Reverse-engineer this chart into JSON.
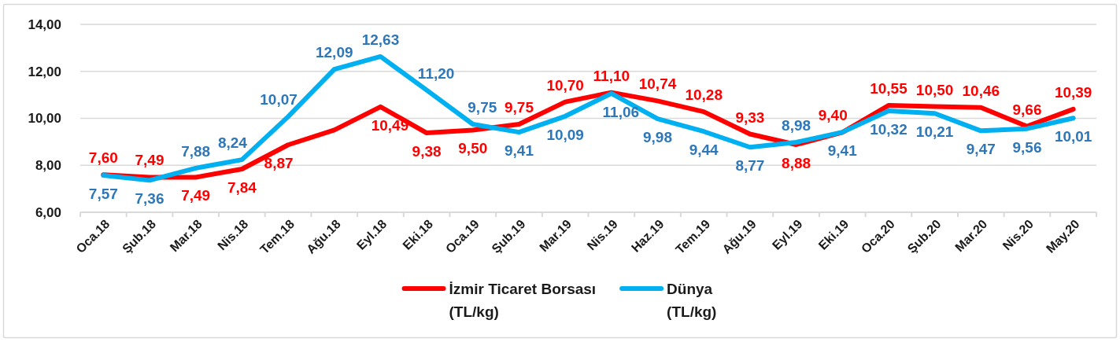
{
  "chart_data": {
    "type": "line",
    "categories": [
      "Oca.18",
      "Şub.18",
      "Mar.18",
      "Nis.18",
      "Tem.18",
      "Ağu.18",
      "Eyl.18",
      "Eki.18",
      "Oca.19",
      "Şub.19",
      "Mar.19",
      "Nis.19",
      "Haz.19",
      "Tem.19",
      "Ağu.19",
      "Eyl.19",
      "Eki.19",
      "Oca.20",
      "Şub.20",
      "Mar.20",
      "Nis.20",
      "May.20"
    ],
    "ylim": [
      6,
      14
    ],
    "yticks": [
      {
        "value": 6,
        "label": "6,00"
      },
      {
        "value": 8,
        "label": "8,00"
      },
      {
        "value": 10,
        "label": "10,00"
      },
      {
        "value": 12,
        "label": "12,00"
      },
      {
        "value": 14,
        "label": "14,00"
      }
    ],
    "grid": "y",
    "legend": "bottom",
    "series": [
      {
        "name": "İzmir Ticaret Borsası (TL/kg)",
        "color": "#ff0000",
        "values": [
          7.6,
          7.49,
          7.49,
          7.84,
          8.87,
          9.5,
          10.49,
          9.38,
          9.5,
          9.75,
          10.7,
          11.1,
          10.74,
          10.28,
          9.33,
          8.88,
          9.4,
          10.55,
          10.5,
          10.46,
          9.66,
          10.39
        ],
        "value_labels": [
          "7,60",
          "7,49",
          "7,49",
          "7,84",
          "8,87",
          null,
          "10,49",
          "9,38",
          "9,50",
          "9,75",
          "10,70",
          "11,10",
          "10,74",
          "10,28",
          "9,33",
          "8,88",
          "9,40",
          "10,55",
          "10,50",
          "10,46",
          "9,66",
          "10,39"
        ]
      },
      {
        "name": "Dünya (TL/kg)",
        "color": "#00b0f0",
        "values": [
          7.57,
          7.36,
          7.88,
          8.24,
          10.07,
          12.09,
          12.63,
          11.2,
          9.75,
          9.41,
          10.09,
          11.06,
          9.98,
          9.44,
          8.77,
          8.98,
          9.41,
          10.32,
          10.21,
          9.47,
          9.56,
          10.01
        ],
        "value_labels": [
          "7,57",
          "7,36",
          "7,88",
          "8,24",
          "10,07",
          "12,09",
          "12,63",
          "11,20",
          "9,75",
          "9,41",
          "10,09",
          "11,06",
          "9,98",
          "9,44",
          "8,77",
          "8,98",
          "9,41",
          "10,32",
          "10,21",
          "9,47",
          "9,56",
          "10,01"
        ]
      }
    ]
  }
}
